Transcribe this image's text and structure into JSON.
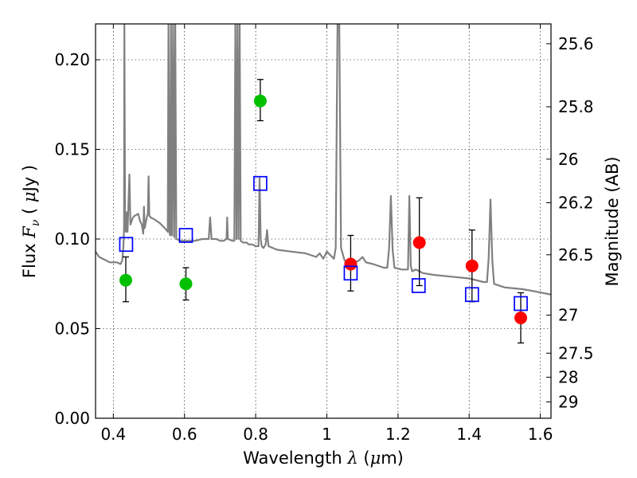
{
  "chart_data": {
    "type": "scatter",
    "xlabel": {
      "text": "Wavelength",
      "symbol": "λ",
      "unit_open": " (",
      "unit_mu": "μ",
      "unit_rest": "m)"
    },
    "ylabel": {
      "text": "Flux",
      "symbol": "F",
      "sub": "ν",
      "unit_open": "( ",
      "unit_mu": "μ",
      "unit_rest": "Jy )"
    },
    "ylabel_right": "Magnitude (AB)",
    "xlim": [
      0.35,
      1.63
    ],
    "ylim": [
      0.0,
      0.22
    ],
    "grid": true,
    "grid_style": "dotted",
    "x_ticks": [
      {
        "value": 0.4,
        "label": "0.4"
      },
      {
        "value": 0.6,
        "label": "0.6"
      },
      {
        "value": 0.8,
        "label": "0.8"
      },
      {
        "value": 1.0,
        "label": "1"
      },
      {
        "value": 1.2,
        "label": "1.2"
      },
      {
        "value": 1.4,
        "label": "1.4"
      },
      {
        "value": 1.6,
        "label": "1.6"
      }
    ],
    "y_ticks": [
      {
        "value": 0.0,
        "label": "0.00"
      },
      {
        "value": 0.05,
        "label": "0.05"
      },
      {
        "value": 0.1,
        "label": "0.10"
      },
      {
        "value": 0.15,
        "label": "0.15"
      },
      {
        "value": 0.2,
        "label": "0.20"
      }
    ],
    "right_ticks": [
      {
        "mag": 25.6,
        "label": "25.6"
      },
      {
        "mag": 25.8,
        "label": "25.8"
      },
      {
        "mag": 26.0,
        "label": "26"
      },
      {
        "mag": 26.2,
        "label": "26.2"
      },
      {
        "mag": 26.5,
        "label": "26.5"
      },
      {
        "mag": 27.0,
        "label": "27"
      },
      {
        "mag": 27.5,
        "label": "27.5"
      },
      {
        "mag": 28.0,
        "label": "28"
      },
      {
        "mag": 29.0,
        "label": "29"
      }
    ],
    "colors": {
      "model": "#808080",
      "green": "#00c000",
      "red": "#ff0000",
      "squares": "#0000ff",
      "errorbar": "#000000"
    },
    "series": [
      {
        "type": "line",
        "color": "#808080",
        "points": [
          [
            0.35,
            0.093
          ],
          [
            0.36,
            0.09
          ],
          [
            0.37,
            0.089
          ],
          [
            0.38,
            0.088
          ],
          [
            0.39,
            0.087
          ],
          [
            0.4,
            0.087
          ],
          [
            0.41,
            0.087
          ],
          [
            0.42,
            0.086
          ],
          [
            0.425,
            0.088
          ],
          [
            0.428,
            0.095
          ],
          [
            0.43,
            0.106
          ],
          [
            0.431,
            0.22
          ],
          [
            0.433,
            0.105
          ],
          [
            0.436,
            0.104
          ],
          [
            0.438,
            0.115
          ],
          [
            0.44,
            0.104
          ],
          [
            0.445,
            0.136
          ],
          [
            0.448,
            0.108
          ],
          [
            0.455,
            0.112
          ],
          [
            0.46,
            0.113
          ],
          [
            0.47,
            0.114
          ],
          [
            0.475,
            0.11
          ],
          [
            0.48,
            0.108
          ],
          [
            0.484,
            0.103
          ],
          [
            0.486,
            0.118
          ],
          [
            0.488,
            0.106
          ],
          [
            0.495,
            0.113
          ],
          [
            0.497,
            0.114
          ],
          [
            0.499,
            0.135
          ],
          [
            0.501,
            0.113
          ],
          [
            0.505,
            0.112
          ],
          [
            0.515,
            0.111
          ],
          [
            0.53,
            0.109
          ],
          [
            0.545,
            0.106
          ],
          [
            0.553,
            0.104
          ],
          [
            0.555,
            0.22
          ],
          [
            0.558,
            0.103
          ],
          [
            0.56,
            0.102
          ],
          [
            0.562,
            0.22
          ],
          [
            0.565,
            0.102
          ],
          [
            0.568,
            0.22
          ],
          [
            0.571,
            0.101
          ],
          [
            0.574,
            0.22
          ],
          [
            0.577,
            0.1
          ],
          [
            0.59,
            0.099
          ],
          [
            0.61,
            0.099
          ],
          [
            0.63,
            0.099
          ],
          [
            0.65,
            0.1
          ],
          [
            0.66,
            0.1
          ],
          [
            0.668,
            0.1
          ],
          [
            0.672,
            0.112
          ],
          [
            0.676,
            0.1
          ],
          [
            0.69,
            0.1
          ],
          [
            0.7,
            0.099
          ],
          [
            0.71,
            0.099
          ],
          [
            0.718,
            0.1
          ],
          [
            0.72,
            0.112
          ],
          [
            0.722,
            0.1
          ],
          [
            0.735,
            0.099
          ],
          [
            0.74,
            0.099
          ],
          [
            0.743,
            0.22
          ],
          [
            0.746,
            0.1
          ],
          [
            0.749,
            0.22
          ],
          [
            0.752,
            0.1
          ],
          [
            0.755,
            0.22
          ],
          [
            0.758,
            0.099
          ],
          [
            0.765,
            0.098
          ],
          [
            0.775,
            0.098
          ],
          [
            0.78,
            0.097
          ],
          [
            0.79,
            0.097
          ],
          [
            0.8,
            0.096
          ],
          [
            0.808,
            0.096
          ],
          [
            0.811,
            0.134
          ],
          [
            0.814,
            0.1
          ],
          [
            0.817,
            0.096
          ],
          [
            0.822,
            0.095
          ],
          [
            0.828,
            0.097
          ],
          [
            0.832,
            0.105
          ],
          [
            0.836,
            0.096
          ],
          [
            0.86,
            0.094
          ],
          [
            0.9,
            0.093
          ],
          [
            0.94,
            0.092
          ],
          [
            0.97,
            0.09
          ],
          [
            0.98,
            0.092
          ],
          [
            0.99,
            0.089
          ],
          [
            1.0,
            0.093
          ],
          [
            1.01,
            0.091
          ],
          [
            1.02,
            0.089
          ],
          [
            1.025,
            0.095
          ],
          [
            1.03,
            0.22
          ],
          [
            1.035,
            0.22
          ],
          [
            1.04,
            0.095
          ],
          [
            1.05,
            0.088
          ],
          [
            1.065,
            0.086
          ],
          [
            1.08,
            0.087
          ],
          [
            1.09,
            0.088
          ],
          [
            1.1,
            0.09
          ],
          [
            1.11,
            0.087
          ],
          [
            1.13,
            0.086
          ],
          [
            1.16,
            0.084
          ],
          [
            1.17,
            0.084
          ],
          [
            1.175,
            0.095
          ],
          [
            1.18,
            0.124
          ],
          [
            1.185,
            0.094
          ],
          [
            1.19,
            0.084
          ],
          [
            1.21,
            0.083
          ],
          [
            1.228,
            0.083
          ],
          [
            1.232,
            0.124
          ],
          [
            1.236,
            0.085
          ],
          [
            1.24,
            0.082
          ],
          [
            1.25,
            0.083
          ],
          [
            1.26,
            0.082
          ],
          [
            1.27,
            0.081
          ],
          [
            1.3,
            0.08
          ],
          [
            1.35,
            0.079
          ],
          [
            1.4,
            0.078
          ],
          [
            1.44,
            0.076
          ],
          [
            1.45,
            0.076
          ],
          [
            1.455,
            0.09
          ],
          [
            1.46,
            0.122
          ],
          [
            1.465,
            0.088
          ],
          [
            1.47,
            0.075
          ],
          [
            1.5,
            0.073
          ],
          [
            1.55,
            0.072
          ],
          [
            1.58,
            0.071
          ],
          [
            1.63,
            0.069
          ]
        ]
      },
      {
        "type": "scatter",
        "name": "green",
        "color": "#00c000",
        "points": [
          {
            "x": 0.435,
            "y": 0.077,
            "yerr_low": 0.065,
            "yerr_high": 0.09
          },
          {
            "x": 0.604,
            "y": 0.075,
            "yerr_low": 0.066,
            "yerr_high": 0.084
          },
          {
            "x": 0.813,
            "y": 0.177,
            "yerr_low": 0.166,
            "yerr_high": 0.189
          }
        ]
      },
      {
        "type": "scatter",
        "name": "red",
        "color": "#ff0000",
        "points": [
          {
            "x": 1.067,
            "y": 0.086,
            "yerr_low": 0.071,
            "yerr_high": 0.102
          },
          {
            "x": 1.26,
            "y": 0.098,
            "yerr_low": 0.074,
            "yerr_high": 0.123
          },
          {
            "x": 1.408,
            "y": 0.085,
            "yerr_low": 0.065,
            "yerr_high": 0.105
          },
          {
            "x": 1.545,
            "y": 0.056,
            "yerr_low": 0.042,
            "yerr_high": 0.07
          }
        ]
      },
      {
        "type": "scatter",
        "name": "squares",
        "color": "#0000ff",
        "points": [
          {
            "x": 0.436,
            "y": 0.097
          },
          {
            "x": 0.604,
            "y": 0.102
          },
          {
            "x": 0.813,
            "y": 0.131
          },
          {
            "x": 1.067,
            "y": 0.081
          },
          {
            "x": 1.258,
            "y": 0.074
          },
          {
            "x": 1.408,
            "y": 0.069
          },
          {
            "x": 1.545,
            "y": 0.064
          }
        ]
      }
    ]
  }
}
